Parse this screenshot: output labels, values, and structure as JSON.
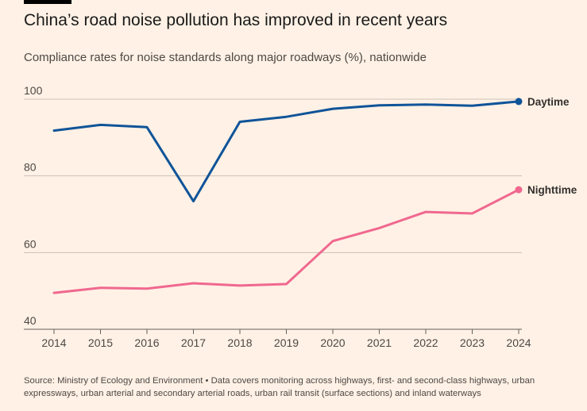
{
  "header": {
    "title": "China’s road noise pollution has improved in recent years",
    "subtitle": "Compliance rates for noise standards along major roadways (%), nationwide"
  },
  "footer": {
    "source": "Source: Ministry of Ecology and Environment • Data covers monitoring across highways, first- and second-class highways, urban expressways, urban arterial and secondary arterial roads, urban rail transit (surface sections) and inland waterways"
  },
  "colors": {
    "background": "#fff1e5",
    "daytime": "#0f5499",
    "nighttime": "#f0688f",
    "grid": "#ccc1b7",
    "axis_text": "#4d4845"
  },
  "chart_data": {
    "type": "line",
    "title": "China’s road noise pollution has improved in recent years",
    "subtitle": "Compliance rates for noise standards along major roadways (%), nationwide",
    "xlabel": "",
    "ylabel": "",
    "x": [
      "2014",
      "2015",
      "2016",
      "2017",
      "2018",
      "2019",
      "2020",
      "2021",
      "2022",
      "2023",
      "2024"
    ],
    "ylim": [
      40,
      100
    ],
    "yticks": [
      40,
      60,
      80,
      100
    ],
    "grid": true,
    "series": [
      {
        "name": "Daytime",
        "color": "#0f5499",
        "values": [
          91.8,
          93.3,
          92.7,
          73.4,
          94.1,
          95.4,
          97.5,
          98.4,
          98.6,
          98.3,
          99.4
        ]
      },
      {
        "name": "Nighttime",
        "color": "#f0688f",
        "values": [
          49.5,
          50.8,
          50.6,
          52.0,
          51.4,
          51.8,
          63.0,
          66.4,
          70.6,
          70.2,
          76.4
        ]
      }
    ]
  }
}
